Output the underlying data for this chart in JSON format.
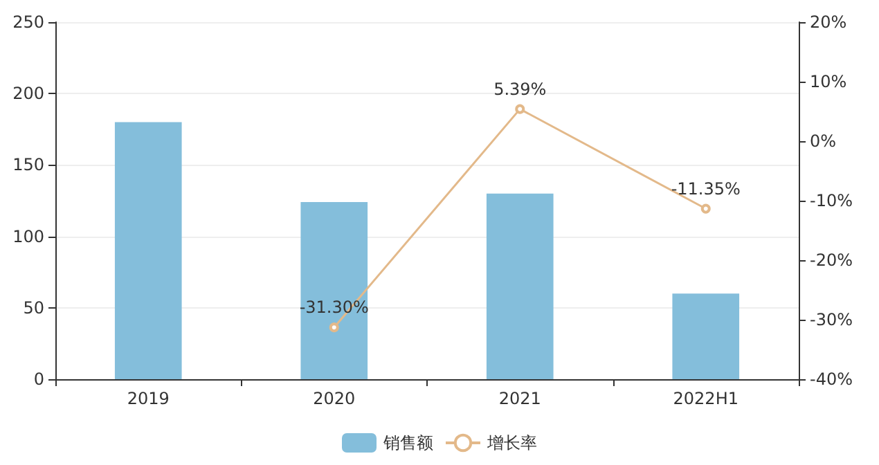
{
  "chart_data": {
    "type": "bar",
    "categories": [
      "2019",
      "2020",
      "2021",
      "2022H1"
    ],
    "series": [
      {
        "name": "销售额",
        "color": "#84bedb",
        "values": [
          180,
          124,
          130,
          60
        ]
      },
      {
        "name": "增长率",
        "type": "line",
        "axis": "y2",
        "color": "#e3b98a",
        "marker": "circle",
        "values": [
          null,
          -31.3,
          5.39,
          -11.35
        ],
        "value_labels": [
          null,
          "-31.30%",
          "5.39%",
          "-11.35%"
        ]
      }
    ],
    "ylim": [
      0,
      250
    ],
    "yticks": [
      0,
      50,
      100,
      150,
      200,
      250
    ],
    "y2lim": [
      -40,
      20
    ],
    "y2ticks": [
      {
        "value": -40,
        "label": "-40%"
      },
      {
        "value": -30,
        "label": "-30%"
      },
      {
        "value": -20,
        "label": "-20%"
      },
      {
        "value": -10,
        "label": "-10%"
      },
      {
        "value": 0,
        "label": "0%"
      },
      {
        "value": 10,
        "label": "10%"
      },
      {
        "value": 20,
        "label": "20%"
      }
    ],
    "grid": "y",
    "legend": "bottom"
  }
}
